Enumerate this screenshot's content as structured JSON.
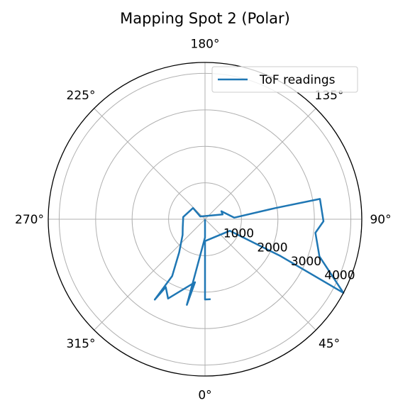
{
  "chart_data": {
    "type": "polar-line",
    "title": "Mapping Spot 2 (Polar)",
    "theta_zero": "bottom",
    "theta_direction": "counterclockwise",
    "theta_ticks": [
      {
        "deg": 0,
        "label": "0°"
      },
      {
        "deg": 45,
        "label": "45°"
      },
      {
        "deg": 90,
        "label": "90°"
      },
      {
        "deg": 135,
        "label": "135°"
      },
      {
        "deg": 180,
        "label": "180°"
      },
      {
        "deg": 225,
        "label": "225°"
      },
      {
        "deg": 270,
        "label": "270°"
      },
      {
        "deg": 315,
        "label": "315°"
      }
    ],
    "r_ticks": [
      {
        "value": 1000,
        "label": "1000"
      },
      {
        "value": 2000,
        "label": "2000"
      },
      {
        "value": 3000,
        "label": "3000"
      },
      {
        "value": 4000,
        "label": "4000"
      }
    ],
    "rlim": [
      0,
      4300
    ],
    "r_label_angle_deg": 67.5,
    "grid": true,
    "legend": {
      "position": "top-right",
      "entries": [
        "ToF readings"
      ]
    },
    "series": [
      {
        "name": "ToF readings",
        "color": "#1f77b4",
        "points": [
          {
            "theta": 90.0,
            "r": 0
          },
          {
            "theta": 0.0,
            "r": 500
          },
          {
            "theta": 348.0,
            "r": 2400
          },
          {
            "theta": 351.0,
            "r": 1750
          },
          {
            "theta": 335.0,
            "r": 2400
          },
          {
            "theta": 330.0,
            "r": 2150
          },
          {
            "theta": 328.0,
            "r": 2600
          },
          {
            "theta": 330.0,
            "r": 1800
          },
          {
            "theta": 322.0,
            "r": 1150
          },
          {
            "theta": 305.0,
            "r": 750
          },
          {
            "theta": 290.0,
            "r": 650
          },
          {
            "theta": 264.0,
            "r": 600
          },
          {
            "theta": 227.0,
            "r": 450
          },
          {
            "theta": 240.0,
            "r": 150
          },
          {
            "theta": 105.0,
            "r": 500
          },
          {
            "theta": 116.0,
            "r": 500
          },
          {
            "theta": 93.0,
            "r": 800
          },
          {
            "theta": 99.0,
            "r": 1950
          },
          {
            "theta": 100.0,
            "r": 3200
          },
          {
            "theta": 89.0,
            "r": 3250
          },
          {
            "theta": 83.0,
            "r": 3050
          },
          {
            "theta": 72.0,
            "r": 3300
          },
          {
            "theta": 62.0,
            "r": 4300
          },
          {
            "theta": 64.0,
            "r": 2300
          },
          {
            "theta": 65.0,
            "r": 750
          },
          {
            "theta": 0.0,
            "r": 600
          },
          {
            "theta": 0.0,
            "r": 2200
          },
          {
            "theta": 4.0,
            "r": 2200
          }
        ]
      }
    ]
  }
}
